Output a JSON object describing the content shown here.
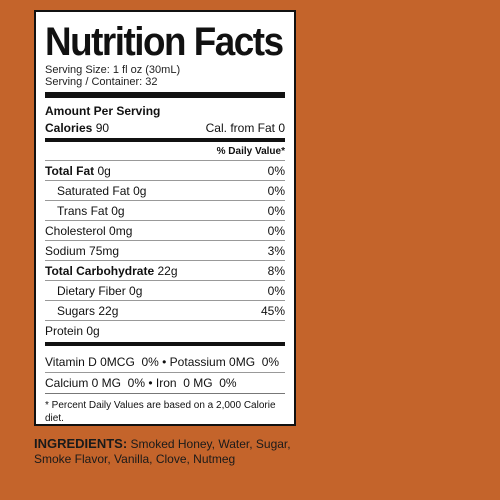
{
  "label": {
    "title": "Nutrition Facts",
    "serving_size": "Serving Size: 1 fl oz (30mL)",
    "servings": "Serving / Container: 32",
    "amount_per_serving": "Amount Per Serving",
    "calories_label": "Calories",
    "calories_value": "90",
    "cal_from_fat": "Cal. from Fat 0",
    "dv_header": "% Daily Value*",
    "nutrients": [
      {
        "name": "Total Fat",
        "amount": "0g",
        "dv": "0%"
      },
      {
        "name": "Saturated Fat",
        "amount": "0g",
        "dv": "0%"
      },
      {
        "name": "Trans Fat",
        "amount": "0g",
        "dv": "0%"
      },
      {
        "name": "Cholesterol",
        "amount": "0mg",
        "dv": "0%"
      },
      {
        "name": "Sodium",
        "amount": "75mg",
        "dv": "3%"
      },
      {
        "name": "Total Carbohydrate",
        "amount": "22g",
        "dv": "8%"
      },
      {
        "name": "Dietary Fiber",
        "amount": "0g",
        "dv": "0%"
      },
      {
        "name": "Sugars",
        "amount": "22g",
        "dv": "45%"
      },
      {
        "name": "Protein",
        "amount": "0g",
        "dv": ""
      }
    ],
    "vitamins_row1": "Vitamin D 0MCG  0% • Potassium 0MG  0%",
    "vitamins_row2": "Calcium 0 MG  0% • Iron  0 MG  0%",
    "footnote": "* Percent Daily Values are based on a 2,000 Calorie diet."
  },
  "ingredients": {
    "label": "INGREDIENTS:",
    "text": "Smoked Honey, Water, Sugar, Smoke Flavor, Vanilla, Clove, Nutmeg"
  },
  "colors": {
    "background": "#c4642b",
    "panel": "#ffffff"
  }
}
